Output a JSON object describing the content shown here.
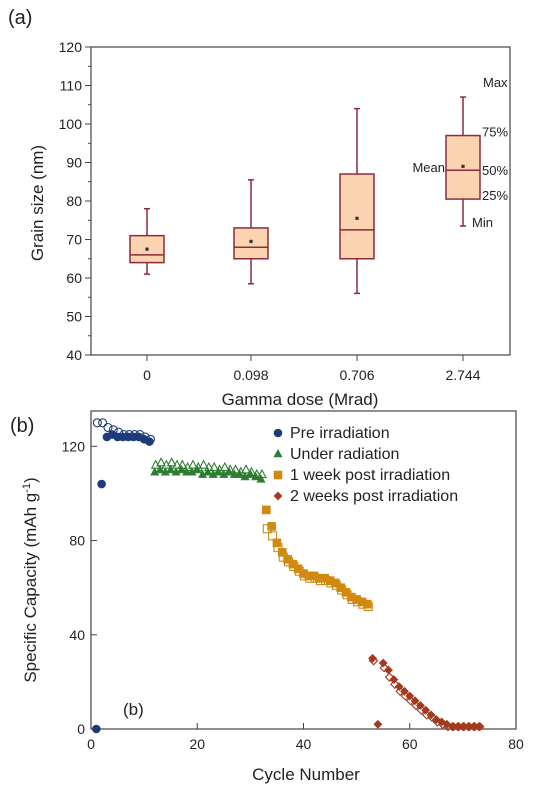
{
  "colors": {
    "box_fill": "#fcd3b0",
    "box_stroke": "#8b2b3b",
    "pre": "#1f3a7a",
    "under": "#2e7d32",
    "week1": "#d08a10",
    "week2": "#a33a1f",
    "axis": "#444444"
  },
  "chart_data": [
    {
      "panel": "(a)",
      "type": "box",
      "xlabel": "Gamma dose (Mrad)",
      "ylabel": "Grain size (nm)",
      "ylim": [
        40,
        120
      ],
      "yticks": [
        40,
        50,
        60,
        70,
        80,
        90,
        100,
        110,
        120
      ],
      "categories": [
        "0",
        "0.098",
        "0.706",
        "2.744"
      ],
      "boxes": [
        {
          "min": 61,
          "q1": 64,
          "median": 66,
          "q3": 71,
          "max": 78,
          "mean": 67.5
        },
        {
          "min": 58.5,
          "q1": 65,
          "median": 68,
          "q3": 73,
          "max": 85.5,
          "mean": 69.5
        },
        {
          "min": 56,
          "q1": 65,
          "median": 72.5,
          "q3": 87,
          "max": 104,
          "mean": 75.5
        },
        {
          "min": 73.5,
          "q1": 80.5,
          "median": 88,
          "q3": 97,
          "max": 107,
          "mean": 89
        }
      ],
      "annotations": {
        "max": "Max",
        "q3": "75%",
        "mean": "Mean",
        "median": "50%",
        "q1": "25%",
        "min": "Min"
      }
    },
    {
      "panel": "(b)",
      "type": "scatter",
      "xlabel": "Cycle Number",
      "ylabel_main": "Specific Capacity (mAh g",
      "ylabel_sup": "-1",
      "ylabel_close": ")",
      "xlim": [
        0,
        80
      ],
      "ylim": [
        0,
        135
      ],
      "xticks": [
        0,
        20,
        40,
        60,
        80
      ],
      "yticks": [
        0,
        40,
        80,
        120
      ],
      "inner_label": "(b)",
      "series": [
        {
          "name": "Pre irradiation",
          "marker": "circle",
          "color_key": "pre",
          "filled": [
            [
              1,
              0
            ],
            [
              2,
              104
            ],
            [
              3,
              124
            ],
            [
              4,
              125
            ],
            [
              5,
              124
            ],
            [
              6,
              124
            ],
            [
              7,
              124
            ],
            [
              8,
              124
            ],
            [
              9,
              124
            ],
            [
              10,
              123
            ],
            [
              11,
              122
            ]
          ],
          "open": [
            [
              1,
              130
            ],
            [
              2,
              130
            ],
            [
              3,
              128
            ],
            [
              4,
              127
            ],
            [
              5,
              126
            ],
            [
              6,
              125
            ],
            [
              7,
              125
            ],
            [
              8,
              125
            ],
            [
              9,
              125
            ],
            [
              10,
              124
            ],
            [
              11,
              123
            ]
          ]
        },
        {
          "name": "Under radiation",
          "marker": "triangle",
          "color_key": "under",
          "filled": [
            [
              12,
              109
            ],
            [
              13,
              110
            ],
            [
              14,
              109
            ],
            [
              15,
              110
            ],
            [
              16,
              109
            ],
            [
              17,
              110
            ],
            [
              18,
              109
            ],
            [
              19,
              109
            ],
            [
              20,
              110
            ],
            [
              21,
              108
            ],
            [
              22,
              109
            ],
            [
              23,
              108
            ],
            [
              24,
              109
            ],
            [
              25,
              108
            ],
            [
              26,
              109
            ],
            [
              27,
              108
            ],
            [
              28,
              108
            ],
            [
              29,
              107
            ],
            [
              30,
              108
            ],
            [
              31,
              107
            ],
            [
              32,
              106
            ]
          ],
          "open": [
            [
              12,
              112
            ],
            [
              13,
              113
            ],
            [
              14,
              112
            ],
            [
              15,
              113
            ],
            [
              16,
              112
            ],
            [
              17,
              112
            ],
            [
              18,
              111
            ],
            [
              19,
              112
            ],
            [
              20,
              111
            ],
            [
              21,
              112
            ],
            [
              22,
              111
            ],
            [
              23,
              111
            ],
            [
              24,
              110
            ],
            [
              25,
              111
            ],
            [
              26,
              110
            ],
            [
              27,
              110
            ],
            [
              28,
              109
            ],
            [
              29,
              110
            ],
            [
              30,
              109
            ],
            [
              31,
              108
            ],
            [
              32,
              108
            ]
          ]
        },
        {
          "name": "1 week post irradiation",
          "marker": "square",
          "color_key": "week1",
          "filled": [
            [
              33,
              93
            ],
            [
              34,
              86
            ],
            [
              35,
              79
            ],
            [
              36,
              75
            ],
            [
              37,
              72
            ],
            [
              38,
              70
            ],
            [
              39,
              68
            ],
            [
              40,
              66
            ],
            [
              41,
              65
            ],
            [
              42,
              65
            ],
            [
              43,
              64
            ],
            [
              44,
              64
            ],
            [
              45,
              63
            ],
            [
              46,
              62
            ],
            [
              47,
              60
            ],
            [
              48,
              58
            ],
            [
              49,
              56
            ],
            [
              50,
              55
            ],
            [
              51,
              54
            ],
            [
              52,
              53
            ]
          ],
          "open": [
            [
              33,
              85
            ],
            [
              34,
              82
            ],
            [
              35,
              77
            ],
            [
              36,
              73
            ],
            [
              37,
              71
            ],
            [
              38,
              69
            ],
            [
              39,
              67
            ],
            [
              40,
              65
            ],
            [
              41,
              64
            ],
            [
              42,
              64
            ],
            [
              43,
              63
            ],
            [
              44,
              63
            ],
            [
              45,
              62
            ],
            [
              46,
              61
            ],
            [
              47,
              59
            ],
            [
              48,
              57
            ],
            [
              49,
              55
            ],
            [
              50,
              54
            ],
            [
              51,
              53
            ],
            [
              52,
              52
            ]
          ]
        },
        {
          "name": "2 weeks post irradiation",
          "marker": "diamond",
          "color_key": "week2",
          "filled": [
            [
              53,
              30
            ],
            [
              54,
              2
            ],
            [
              55,
              28
            ],
            [
              56,
              25
            ],
            [
              57,
              21
            ],
            [
              58,
              18
            ],
            [
              59,
              16
            ],
            [
              60,
              14
            ],
            [
              61,
              12
            ],
            [
              62,
              10
            ],
            [
              63,
              8
            ],
            [
              64,
              6
            ],
            [
              65,
              4
            ],
            [
              66,
              3
            ],
            [
              67,
              2
            ],
            [
              68,
              1
            ],
            [
              69,
              1
            ],
            [
              70,
              1
            ],
            [
              71,
              1
            ],
            [
              72,
              1
            ],
            [
              73,
              1
            ]
          ],
          "open": [
            [
              53,
              29
            ],
            [
              55,
              26
            ],
            [
              56,
              22
            ],
            [
              57,
              19
            ],
            [
              58,
              16
            ],
            [
              59,
              14
            ],
            [
              60,
              12
            ],
            [
              61,
              10
            ],
            [
              62,
              8
            ],
            [
              63,
              6
            ],
            [
              64,
              5
            ],
            [
              65,
              3
            ],
            [
              66,
              2
            ],
            [
              67,
              1
            ],
            [
              68,
              1
            ],
            [
              69,
              1
            ],
            [
              70,
              1
            ],
            [
              71,
              1
            ],
            [
              72,
              1
            ],
            [
              73,
              1
            ]
          ]
        }
      ]
    }
  ]
}
